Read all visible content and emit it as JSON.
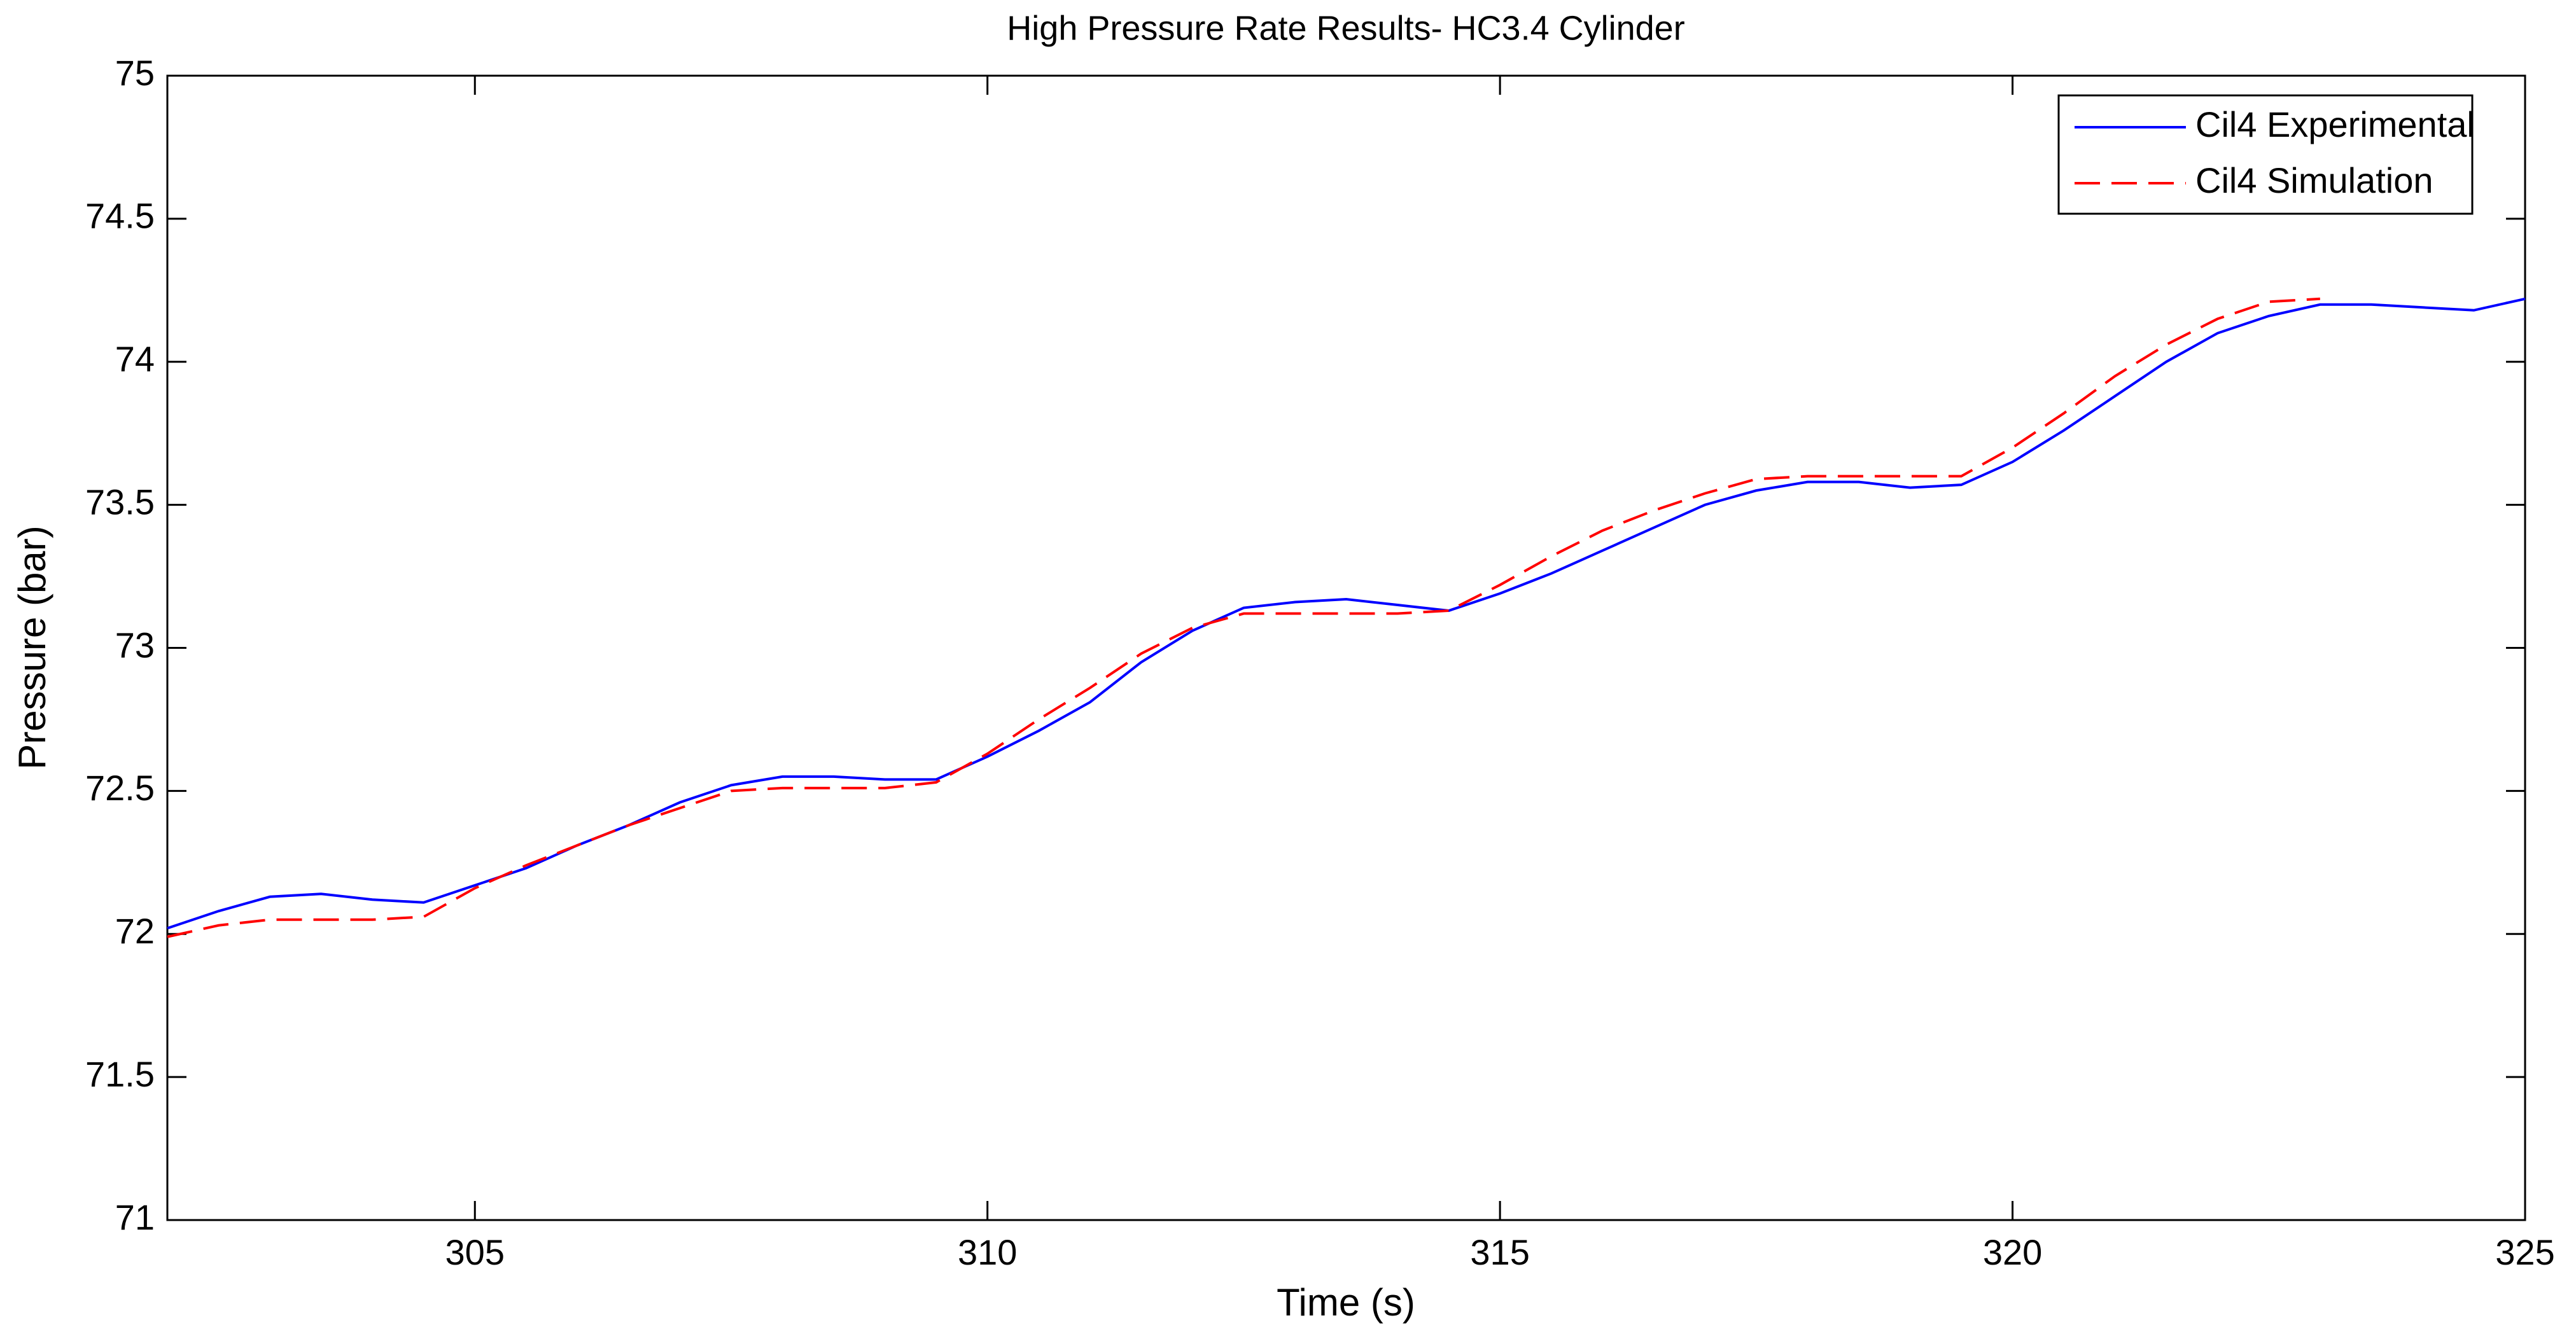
{
  "chart_data": {
    "type": "line",
    "title": "High Pressure Rate Results- HC3.4 Cylinder",
    "x_label": "Time (s)",
    "y_label": "Pressure (bar)",
    "x": [
      302,
      302.5,
      303,
      303.5,
      304,
      304.5,
      305,
      305.5,
      306,
      306.5,
      307,
      307.5,
      308,
      308.5,
      309,
      309.5,
      310,
      310.5,
      311,
      311.5,
      312,
      312.5,
      313,
      313.5,
      314,
      314.5,
      315,
      315.5,
      316,
      316.5,
      317,
      317.5,
      318,
      318.5,
      319,
      319.5,
      320,
      320.5,
      321,
      321.5,
      322,
      322.5,
      323,
      323.5,
      324,
      324.5,
      325
    ],
    "series": [
      {
        "name": "Cil4 Experimental",
        "color": "#0000ff",
        "dash": "solid",
        "values": [
          72.02,
          72.08,
          72.13,
          72.14,
          72.12,
          72.11,
          72.17,
          72.23,
          72.31,
          72.38,
          72.46,
          72.52,
          72.55,
          72.55,
          72.54,
          72.54,
          72.62,
          72.71,
          72.81,
          72.95,
          73.06,
          73.14,
          73.16,
          73.17,
          73.15,
          73.13,
          73.19,
          73.26,
          73.34,
          73.42,
          73.5,
          73.55,
          73.58,
          73.58,
          73.56,
          73.57,
          73.65,
          73.76,
          73.88,
          74.0,
          74.1,
          74.16,
          74.2,
          74.2,
          74.19,
          74.18,
          74.22
        ]
      },
      {
        "name": "Cil4 Simulation",
        "color": "#ff0000",
        "dash": "dashed",
        "values": [
          71.99,
          72.03,
          72.05,
          72.05,
          72.05,
          72.06,
          72.16,
          72.24,
          72.31,
          72.38,
          72.44,
          72.5,
          72.51,
          72.51,
          72.51,
          72.53,
          72.63,
          72.75,
          72.86,
          72.98,
          73.07,
          73.12,
          73.12,
          73.12,
          73.12,
          73.13,
          73.22,
          73.32,
          73.41,
          73.48,
          73.54,
          73.59,
          73.6,
          73.6,
          73.6,
          73.6,
          73.7,
          73.82,
          73.95,
          74.06,
          74.15,
          74.21,
          74.22,
          null,
          null,
          null,
          null
        ]
      }
    ],
    "xlim": [
      302,
      325
    ],
    "ylim": [
      71,
      75
    ],
    "xticks": [
      305,
      310,
      315,
      320,
      325
    ],
    "yticks": [
      71,
      71.5,
      72,
      72.5,
      73,
      73.5,
      74,
      74.5,
      75
    ],
    "grid": false,
    "legend_position": "upper right"
  }
}
